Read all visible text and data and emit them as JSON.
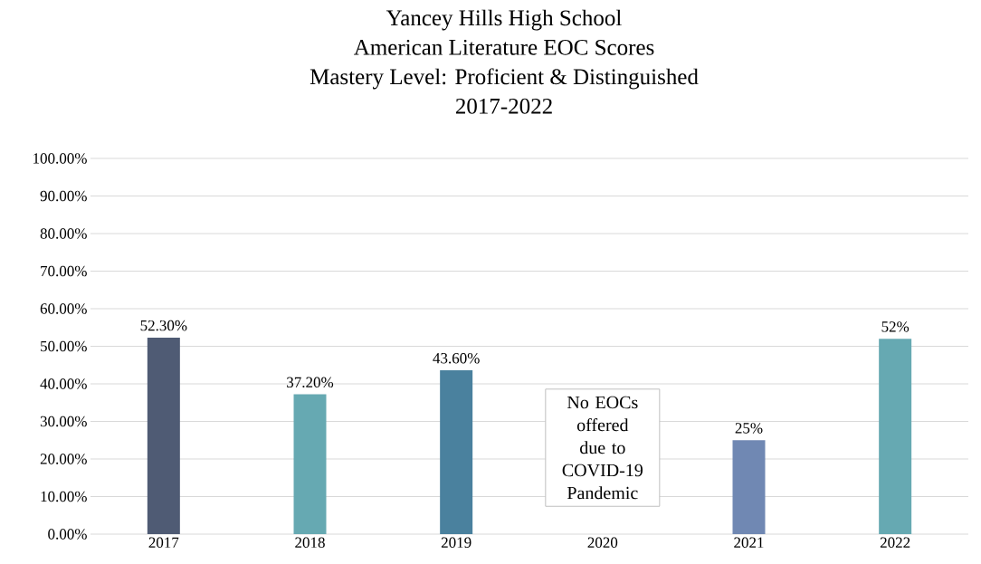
{
  "chart_data": {
    "type": "bar",
    "title": "Yancey Hills High School",
    "subtitle": "American Literature EOC Scores",
    "categories": [
      "2017",
      "2018",
      "2019",
      "2020",
      "2021",
      "2022"
    ],
    "values": [
      52.3,
      37.2,
      43.6,
      null,
      25,
      52
    ],
    "colors": [
      "#4f5b74",
      "#66a9b2",
      "#4a819e",
      "#808080",
      "#7088b3",
      "#66a9b2"
    ],
    "value_labels": [
      "52.30%",
      "37.20%",
      "43.60%",
      null,
      "25%",
      "52%"
    ],
    "ylim": [
      0,
      100
    ],
    "yticks": [
      {
        "value": 0,
        "label": "0.00%"
      },
      {
        "value": 10,
        "label": "10.00%"
      },
      {
        "value": 20,
        "label": "20.00%"
      },
      {
        "value": 30,
        "label": "30.00%"
      },
      {
        "value": 40,
        "label": "40.00%"
      },
      {
        "value": 50,
        "label": "50.00%"
      },
      {
        "value": 60,
        "label": "60.00%"
      },
      {
        "value": 70,
        "label": "70.00%"
      },
      {
        "value": 80,
        "label": "80.00%"
      },
      {
        "value": 90,
        "label": "90.00%"
      },
      {
        "value": 100,
        "label": "100.00%"
      }
    ],
    "grid": "y",
    "annotations": [
      "Mastery Level: Proficient & Distinguished",
      "2017-2022",
      "No EOCs offered due to COVID-19 Pandemic"
    ]
  }
}
